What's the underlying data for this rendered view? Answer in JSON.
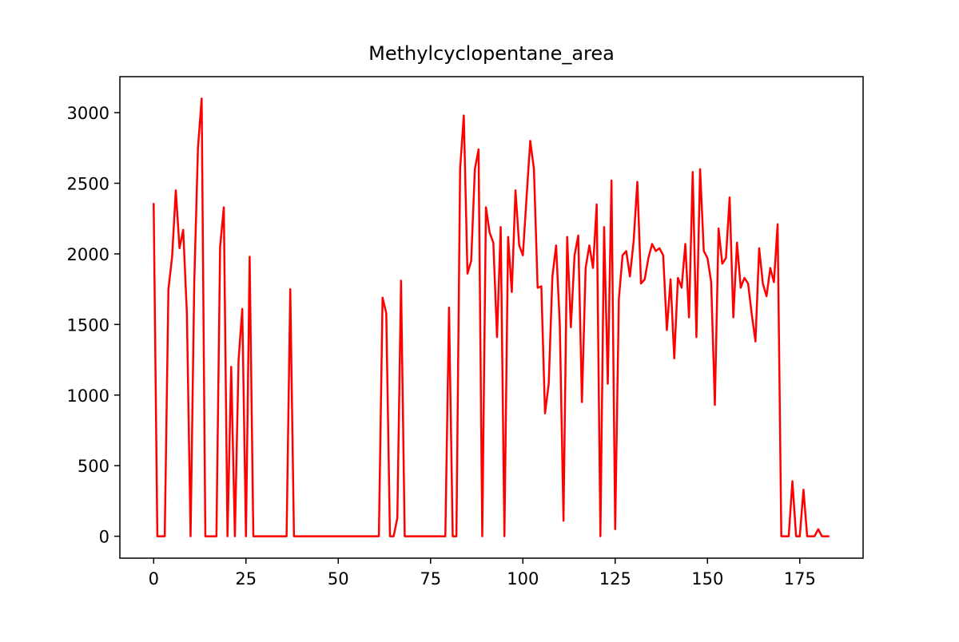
{
  "chart_data": {
    "type": "line",
    "title": "Methylcyclopentane_area",
    "x": [
      0,
      1,
      2,
      3,
      4,
      5,
      6,
      7,
      8,
      9,
      10,
      11,
      12,
      13,
      14,
      15,
      16,
      17,
      18,
      19,
      20,
      21,
      22,
      23,
      24,
      25,
      26,
      27,
      28,
      29,
      30,
      31,
      32,
      33,
      34,
      35,
      36,
      37,
      38,
      39,
      40,
      41,
      42,
      43,
      44,
      45,
      46,
      47,
      48,
      49,
      50,
      51,
      52,
      53,
      54,
      55,
      56,
      57,
      58,
      59,
      60,
      61,
      62,
      63,
      64,
      65,
      66,
      67,
      68,
      69,
      70,
      71,
      72,
      73,
      74,
      75,
      76,
      77,
      78,
      79,
      80,
      81,
      82,
      83,
      84,
      85,
      86,
      87,
      88,
      89,
      90,
      91,
      92,
      93,
      94,
      95,
      96,
      97,
      98,
      99,
      100,
      101,
      102,
      103,
      104,
      105,
      106,
      107,
      108,
      109,
      110,
      111,
      112,
      113,
      114,
      115,
      116,
      117,
      118,
      119,
      120,
      121,
      122,
      123,
      124,
      125,
      126,
      127,
      128,
      129,
      130,
      131,
      132,
      133,
      134,
      135,
      136,
      137,
      138,
      139,
      140,
      141,
      142,
      143,
      144,
      145,
      146,
      147,
      148,
      149,
      150,
      151,
      152,
      153,
      154,
      155,
      156,
      157,
      158,
      159,
      160,
      161,
      162,
      163,
      164,
      165,
      166,
      167,
      168,
      169,
      170,
      171,
      172,
      173,
      174,
      175,
      176,
      177,
      178,
      179,
      180,
      181,
      182,
      183
    ],
    "series": [
      {
        "name": "Methylcyclopentane_area",
        "color": "#ff0000",
        "values": [
          2360,
          0,
          0,
          0,
          1750,
          1980,
          2450,
          2040,
          2170,
          1580,
          0,
          1800,
          2750,
          3100,
          0,
          0,
          0,
          0,
          2050,
          2330,
          0,
          1200,
          0,
          1250,
          1610,
          0,
          1980,
          0,
          0,
          0,
          0,
          0,
          0,
          0,
          0,
          0,
          0,
          1750,
          0,
          0,
          0,
          0,
          0,
          0,
          0,
          0,
          0,
          0,
          0,
          0,
          0,
          0,
          0,
          0,
          0,
          0,
          0,
          0,
          0,
          0,
          0,
          0,
          1690,
          1580,
          0,
          0,
          130,
          1810,
          0,
          0,
          0,
          0,
          0,
          0,
          0,
          0,
          0,
          0,
          0,
          0,
          1620,
          0,
          0,
          2600,
          2980,
          1860,
          1950,
          2600,
          2740,
          0,
          2330,
          2150,
          2080,
          1410,
          2190,
          0,
          2120,
          1730,
          2450,
          2060,
          1990,
          2400,
          2800,
          2600,
          1760,
          1770,
          870,
          1080,
          1840,
          2060,
          1500,
          110,
          2120,
          1480,
          1990,
          2130,
          950,
          1900,
          2060,
          1900,
          2350,
          0,
          2190,
          1080,
          2520,
          50,
          1680,
          1990,
          2020,
          1840,
          2090,
          2510,
          1790,
          1820,
          1970,
          2070,
          2020,
          2040,
          1990,
          1460,
          1820,
          1260,
          1830,
          1760,
          2070,
          1550,
          2580,
          1410,
          2600,
          2020,
          1970,
          1800,
          930,
          2180,
          1930,
          1970,
          2400,
          1550,
          2080,
          1760,
          1830,
          1790,
          1570,
          1380,
          2040,
          1790,
          1700,
          1900,
          1800,
          2210,
          0,
          0,
          0,
          390,
          0,
          0,
          330,
          0,
          0,
          0,
          50,
          0,
          0,
          0
        ]
      }
    ],
    "xlim": [
      -9.15,
      192.15
    ],
    "ylim": [
      -155,
      3255
    ],
    "xticks": [
      0,
      25,
      50,
      75,
      100,
      125,
      150,
      175
    ],
    "yticks": [
      0,
      500,
      1000,
      1500,
      2000,
      2500,
      3000
    ]
  }
}
